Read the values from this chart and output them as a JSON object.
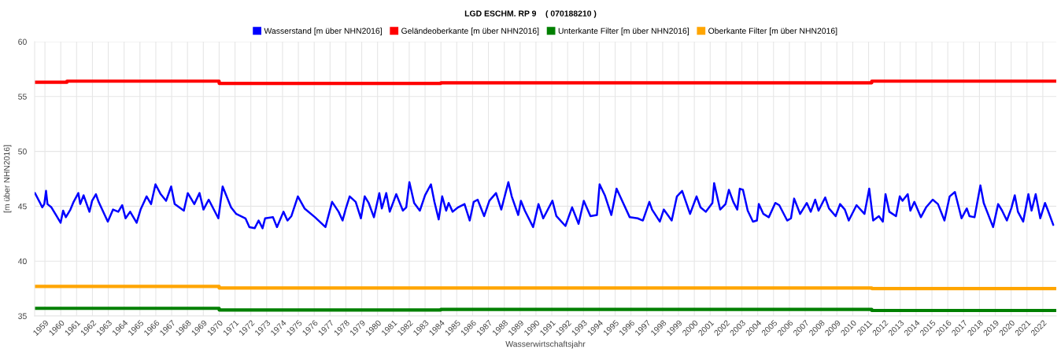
{
  "chart_data": {
    "type": "line",
    "title": "LGD ESCHM. RP 9    ( 070188210 )",
    "xlabel": "Wasserwirtschaftsjahr",
    "ylabel": "[m über NHN2016]",
    "xlim": [
      1958.35,
      2022.85
    ],
    "xticks": [
      1959,
      1960,
      1961,
      1962,
      1963,
      1964,
      1965,
      1966,
      1967,
      1968,
      1969,
      1970,
      1971,
      1972,
      1973,
      1974,
      1975,
      1976,
      1977,
      1978,
      1979,
      1980,
      1981,
      1982,
      1983,
      1984,
      1985,
      1986,
      1987,
      1988,
      1989,
      1990,
      1991,
      1992,
      1993,
      1994,
      1995,
      1996,
      1997,
      1998,
      1999,
      2000,
      2001,
      2002,
      2003,
      2004,
      2005,
      2006,
      2007,
      2008,
      2009,
      2010,
      2011,
      2012,
      2013,
      2014,
      2015,
      2016,
      2017,
      2018,
      2019,
      2020,
      2021,
      2022
    ],
    "ylim": [
      35,
      60
    ],
    "yticks": [
      35,
      40,
      45,
      50,
      55,
      60
    ],
    "grid": true,
    "legend": "top",
    "marker": "none",
    "line_style": "solid",
    "series": [
      {
        "name": "Wasserstand [m über NHN2016]",
        "color": "#0000ff",
        "x": [
          1958.37,
          1958.66,
          1958.83,
          1958.96,
          1959.07,
          1959.16,
          1959.41,
          1959.74,
          1959.99,
          1960.15,
          1960.32,
          1960.61,
          1960.81,
          1961.11,
          1961.23,
          1961.44,
          1961.81,
          1961.98,
          1962.22,
          1962.39,
          1962.97,
          1963.3,
          1963.63,
          1963.88,
          1964.09,
          1964.38,
          1964.79,
          1965.04,
          1965.42,
          1965.7,
          1965.98,
          1966.31,
          1966.65,
          1966.97,
          1967.19,
          1967.77,
          1968.02,
          1968.43,
          1968.76,
          1969.01,
          1969.34,
          1969.95,
          1970.22,
          1970.75,
          1971.08,
          1971.66,
          1971.91,
          1972.24,
          1972.49,
          1972.74,
          1972.9,
          1973.4,
          1973.65,
          1974.06,
          1974.31,
          1974.56,
          1974.97,
          1975.39,
          1976.05,
          1976.71,
          1977.13,
          1977.54,
          1977.79,
          1978.0,
          1978.24,
          1978.62,
          1978.95,
          1979.19,
          1979.44,
          1979.77,
          1979.99,
          1980.11,
          1980.27,
          1980.55,
          1980.77,
          1981.18,
          1981.6,
          1981.81,
          1982.01,
          1982.31,
          1982.67,
          1983.0,
          1983.37,
          1983.59,
          1983.86,
          1984.08,
          1984.33,
          1984.49,
          1984.74,
          1985.08,
          1985.49,
          1985.82,
          1986.07,
          1986.32,
          1986.73,
          1987.06,
          1987.48,
          1987.81,
          1988.26,
          1988.47,
          1988.88,
          1989.05,
          1989.3,
          1989.82,
          1990.16,
          1990.46,
          1991.04,
          1991.29,
          1991.86,
          1992.28,
          1992.69,
          1993.02,
          1993.44,
          1993.85,
          1994.02,
          1994.35,
          1994.76,
          1995.09,
          1995.92,
          1996.42,
          1996.75,
          1997.16,
          1997.33,
          1997.82,
          1998.07,
          1998.57,
          1998.9,
          1999.23,
          1999.73,
          2000.14,
          2000.39,
          2000.72,
          2001.14,
          2001.25,
          2001.63,
          2001.97,
          2002.18,
          2002.46,
          2002.71,
          2002.87,
          2003.07,
          2003.37,
          2003.7,
          2003.95,
          2004.07,
          2004.36,
          2004.7,
          2005.11,
          2005.36,
          2005.86,
          2006.1,
          2006.3,
          2006.68,
          2007.1,
          2007.35,
          2007.63,
          2007.84,
          2008.26,
          2008.5,
          2008.92,
          2009.2,
          2009.5,
          2009.75,
          2010.24,
          2010.74,
          2011.04,
          2011.29,
          2011.65,
          2011.9,
          2012.07,
          2012.31,
          2012.73,
          2012.97,
          2013.14,
          2013.47,
          2013.64,
          2013.89,
          2014.3,
          2014.63,
          2015.05,
          2015.38,
          2015.79,
          2016.12,
          2016.45,
          2016.87,
          2017.2,
          2017.37,
          2017.69,
          2018.06,
          2018.27,
          2018.86,
          2019.18,
          2019.43,
          2019.73,
          2020.01,
          2020.23,
          2020.43,
          2020.76,
          2021.09,
          2021.29,
          2021.55,
          2021.84,
          2022.14,
          2022.33,
          2022.66
        ],
        "values": [
          46.2,
          45.4,
          44.9,
          45.2,
          46.4,
          45.2,
          44.9,
          44.1,
          43.5,
          44.6,
          44.0,
          44.7,
          45.4,
          46.2,
          45.2,
          46.0,
          44.5,
          45.5,
          46.1,
          45.4,
          43.6,
          44.7,
          44.5,
          45.1,
          43.9,
          44.5,
          43.5,
          44.7,
          45.9,
          45.2,
          47.0,
          46.1,
          45.5,
          46.8,
          45.2,
          44.6,
          46.2,
          45.2,
          46.2,
          44.7,
          45.6,
          43.9,
          46.8,
          44.9,
          44.3,
          43.9,
          43.1,
          43.0,
          43.7,
          43.0,
          43.9,
          44.0,
          43.1,
          44.5,
          43.7,
          44.1,
          45.9,
          44.8,
          44.0,
          43.1,
          45.4,
          44.5,
          43.7,
          44.8,
          45.9,
          45.4,
          43.9,
          45.9,
          45.3,
          44.0,
          45.4,
          46.2,
          44.8,
          46.2,
          44.5,
          46.1,
          44.6,
          44.9,
          47.2,
          45.3,
          44.6,
          46.0,
          47.0,
          45.4,
          43.8,
          45.9,
          44.6,
          45.3,
          44.5,
          44.9,
          45.2,
          43.7,
          45.4,
          45.6,
          44.1,
          45.5,
          46.2,
          44.7,
          47.2,
          45.9,
          44.2,
          45.5,
          44.6,
          43.1,
          45.2,
          43.9,
          45.5,
          44.1,
          43.2,
          44.9,
          43.4,
          45.5,
          44.1,
          44.2,
          47.0,
          46.0,
          44.2,
          46.6,
          44.0,
          43.9,
          43.7,
          45.4,
          44.7,
          43.6,
          44.7,
          43.7,
          45.9,
          46.4,
          44.3,
          45.9,
          44.9,
          44.5,
          45.3,
          47.1,
          44.7,
          45.2,
          46.5,
          45.4,
          44.7,
          46.6,
          46.5,
          44.6,
          43.6,
          43.7,
          45.2,
          44.3,
          44.0,
          45.3,
          45.1,
          43.7,
          43.9,
          45.7,
          44.3,
          45.3,
          44.5,
          45.6,
          44.6,
          45.8,
          44.8,
          44.1,
          45.2,
          44.7,
          43.7,
          45.1,
          44.3,
          46.6,
          43.7,
          44.1,
          43.6,
          46.1,
          44.5,
          44.1,
          45.9,
          45.5,
          46.1,
          44.6,
          45.4,
          44.0,
          44.9,
          45.6,
          45.2,
          43.7,
          45.9,
          46.3,
          43.9,
          44.8,
          44.1,
          44.0,
          46.9,
          45.3,
          43.1,
          45.2,
          44.6,
          43.7,
          44.8,
          46.0,
          44.5,
          43.6,
          46.1,
          44.6,
          46.1,
          43.9,
          45.3,
          44.6,
          43.3
        ]
      },
      {
        "name": "Geländeoberkante [m über NHN2016]",
        "color": "#ff0000",
        "type": "step",
        "x": [
          1958.37,
          1960.39,
          1970.0,
          1984.0,
          2011.2,
          2022.83
        ],
        "values": [
          56.3,
          56.4,
          56.2,
          56.25,
          56.4,
          56.4
        ]
      },
      {
        "name": "Unterkante Filter [m über NHN2016]",
        "color": "#008000",
        "type": "step",
        "x": [
          1958.37,
          1970.0,
          1984.0,
          2011.2,
          2022.83
        ],
        "values": [
          35.7,
          35.55,
          35.6,
          35.5,
          35.5
        ]
      },
      {
        "name": "Oberkante Filter [m über NHN2016]",
        "color": "#ffa500",
        "type": "step",
        "x": [
          1958.37,
          1970.0,
          2011.2,
          2022.83
        ],
        "values": [
          37.7,
          37.55,
          37.5,
          37.5
        ]
      }
    ]
  }
}
